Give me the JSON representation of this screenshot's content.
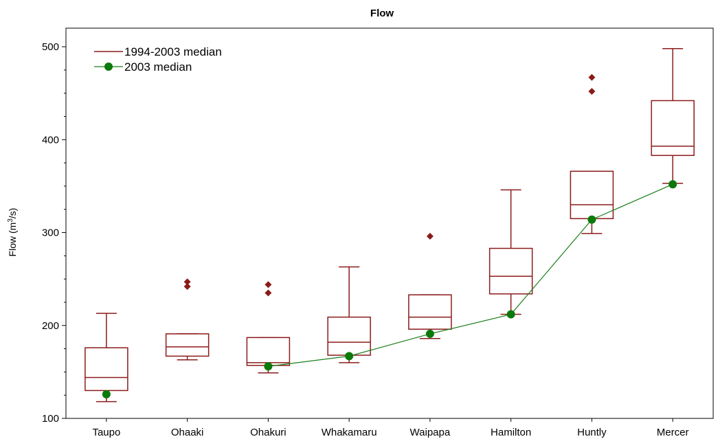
{
  "chart_data": {
    "type": "boxplot",
    "title": "Flow",
    "ylabel_main": "Flow (m",
    "ylabel_sup": "3",
    "ylabel_tail": "/s)",
    "ylim": [
      100,
      520
    ],
    "yticks": [
      100,
      200,
      300,
      400,
      500
    ],
    "categories": [
      "Taupo",
      "Ohaaki",
      "Ohakuri",
      "Whakamaru",
      "Waipapa",
      "Hamilton",
      "Huntly",
      "Mercer"
    ],
    "series": [
      {
        "name": "1994-2003 median",
        "type": "box",
        "color": "#8b1a1a",
        "boxes": [
          {
            "min": 118,
            "q1": 130,
            "median": 144,
            "q3": 176,
            "max": 213,
            "outliers": []
          },
          {
            "min": 163,
            "q1": 167,
            "median": 177,
            "q3": 191,
            "max": 191,
            "outliers": [
              242,
              247
            ]
          },
          {
            "min": 149,
            "q1": 157,
            "median": 160,
            "q3": 187,
            "max": 187,
            "outliers": [
              235,
              244
            ]
          },
          {
            "min": 160,
            "q1": 168,
            "median": 182,
            "q3": 209,
            "max": 263,
            "outliers": []
          },
          {
            "min": 186,
            "q1": 196,
            "median": 209,
            "q3": 233,
            "max": 233,
            "outliers": [
              296
            ]
          },
          {
            "min": 212,
            "q1": 234,
            "median": 253,
            "q3": 283,
            "max": 346,
            "outliers": []
          },
          {
            "min": 299,
            "q1": 315,
            "median": 330,
            "q3": 366,
            "max": 366,
            "outliers": [
              452,
              467
            ]
          },
          {
            "min": 353,
            "q1": 383,
            "median": 393,
            "q3": 442,
            "max": 498,
            "outliers": []
          }
        ]
      },
      {
        "name": "2003 median",
        "type": "line",
        "color": "#1a7f1a",
        "marker_color": "#0b7a0b",
        "points": [
          {
            "category": "Taupo",
            "value": 126,
            "connected": false
          },
          {
            "category": "Ohakuri",
            "value": 156,
            "connected": true
          },
          {
            "category": "Whakamaru",
            "value": 167,
            "connected": true
          },
          {
            "category": "Waipapa",
            "value": 191,
            "connected": true
          },
          {
            "category": "Hamilton",
            "value": 212,
            "connected": true
          },
          {
            "category": "Huntly",
            "value": 314,
            "connected": true
          },
          {
            "category": "Mercer",
            "value": 352,
            "connected": true
          }
        ]
      }
    ],
    "legend": {
      "placement": "top-left",
      "entries": [
        "1994-2003 median",
        "2003 median"
      ]
    }
  }
}
